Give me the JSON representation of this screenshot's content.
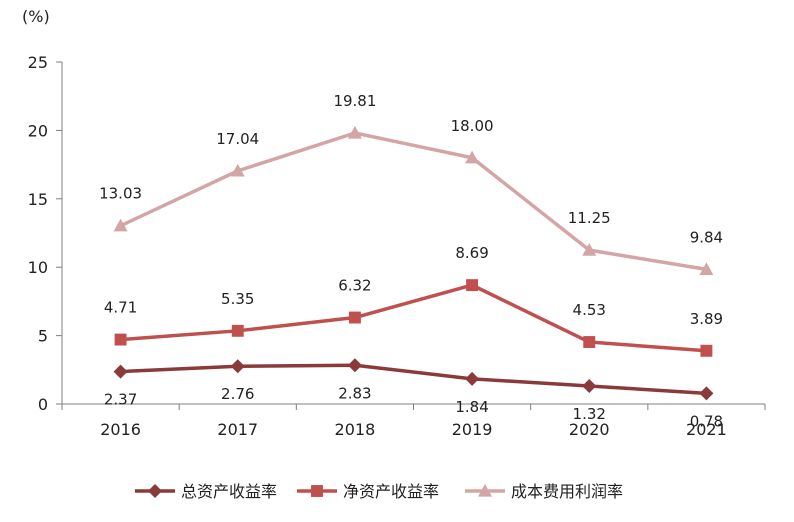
{
  "chart_data": {
    "type": "line",
    "unit_label": "(%)",
    "categories": [
      "2016",
      "2017",
      "2018",
      "2019",
      "2020",
      "2021"
    ],
    "y_ticks": [
      "0",
      "5",
      "10",
      "15",
      "20",
      "25"
    ],
    "ylim": [
      0,
      25
    ],
    "grid": false,
    "legend_position": "bottom",
    "series": [
      {
        "name": "总资产收益率",
        "values": [
          2.37,
          2.76,
          2.83,
          1.84,
          1.32,
          0.78
        ],
        "labels": [
          "2.37",
          "2.76",
          "2.83",
          "1.84",
          "1.32",
          "0.78"
        ],
        "color": "#8B3A3A",
        "marker": "diamond"
      },
      {
        "name": "净资产收益率",
        "values": [
          4.71,
          5.35,
          6.32,
          8.69,
          4.53,
          3.89
        ],
        "labels": [
          "4.71",
          "5.35",
          "6.32",
          "8.69",
          "4.53",
          "3.89"
        ],
        "color": "#C0504D",
        "marker": "square"
      },
      {
        "name": "成本费用利润率",
        "values": [
          13.03,
          17.04,
          19.81,
          18.0,
          11.25,
          9.84
        ],
        "labels": [
          "13.03",
          "17.04",
          "19.81",
          "18.00",
          "11.25",
          "9.84"
        ],
        "color": "#D4A5A5",
        "marker": "triangle"
      }
    ]
  }
}
